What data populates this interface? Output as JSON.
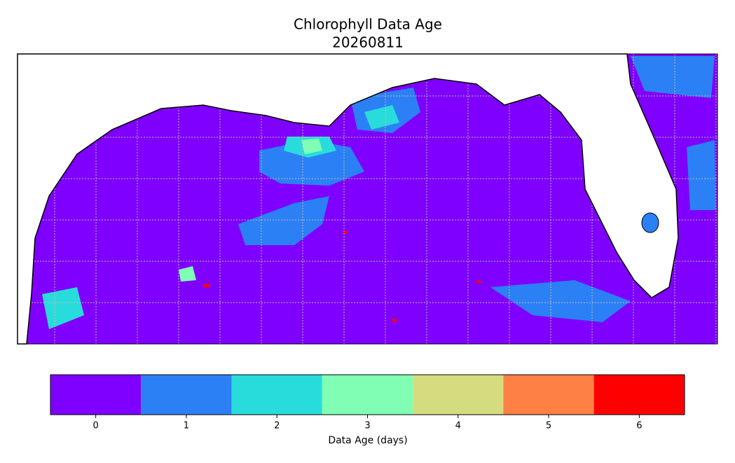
{
  "chart_data": {
    "type": "colormap",
    "title": "Chlorophyll Data Age",
    "subtitle": "20260811",
    "colorbar": {
      "label": "Data Age (days)",
      "lim": [
        -0.5,
        6.5
      ],
      "ticks": [
        0,
        1,
        2,
        3,
        4,
        5,
        6
      ],
      "colors": [
        "#7f00ff",
        "#2c80f6",
        "#29dcdc",
        "#80feb4",
        "#d4dc7f",
        "#ff8044",
        "#ff0000"
      ]
    }
  }
}
